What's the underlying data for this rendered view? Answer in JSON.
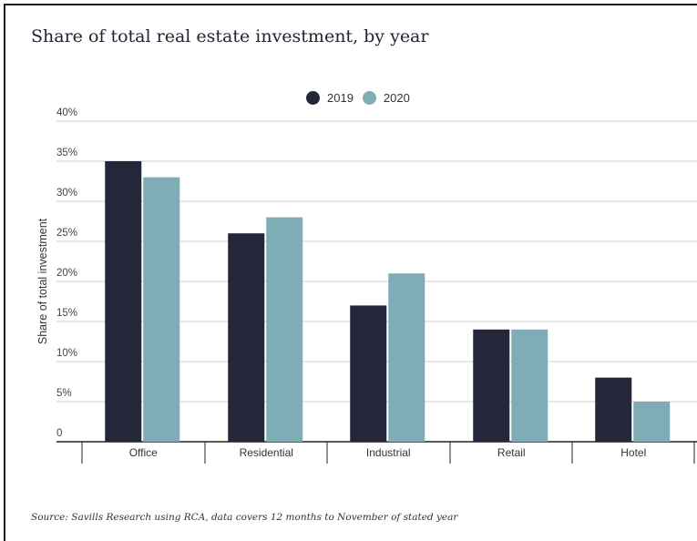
{
  "title": "Share of total real estate investment, by year",
  "source": "Source: Savills Research using RCA, data covers 12 months to November of stated year",
  "colors": {
    "y2019": "#242739",
    "y2020": "#7fadb5",
    "grid": "#cfcfcf",
    "axis": "#222222"
  },
  "chart_data": {
    "type": "bar",
    "title": "Share of total real estate investment, by year",
    "categories": [
      "Office",
      "Residential",
      "Industrial",
      "Retail",
      "Hotel"
    ],
    "series": [
      {
        "name": "2019",
        "values": [
          35,
          26,
          17,
          14,
          8
        ]
      },
      {
        "name": "2020",
        "values": [
          33,
          28,
          21,
          14,
          5
        ]
      }
    ],
    "xlabel": "",
    "ylabel": "Share of total investment",
    "ylim": [
      0,
      40
    ],
    "yticks": [
      "0",
      "5%",
      "10%",
      "15%",
      "20%",
      "25%",
      "30%",
      "35%",
      "40%"
    ],
    "grid": true,
    "legend": "top-center"
  }
}
